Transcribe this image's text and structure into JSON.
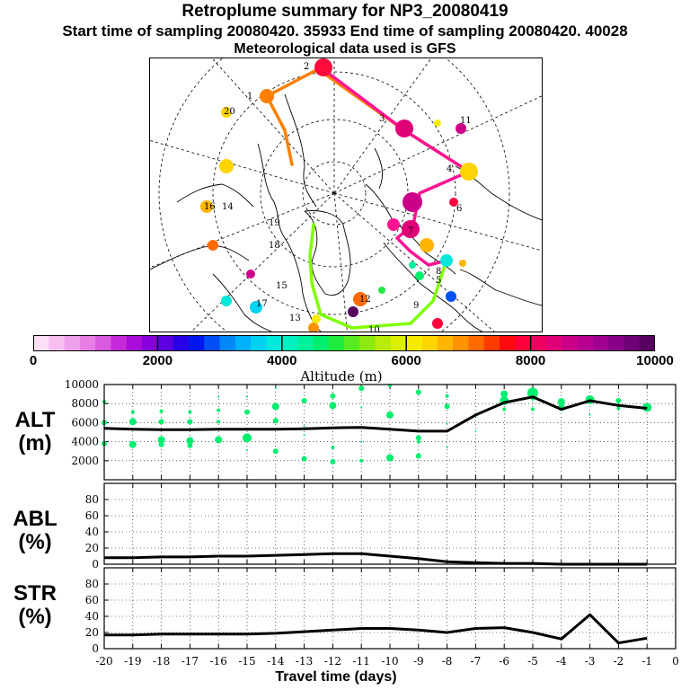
{
  "title": "Retroplume summary for NP3_20080419",
  "subtitle": "Start time of sampling 20080420. 35933     End time of sampling 20080420. 40028",
  "met_line": "Meteorological data used is GFS",
  "colorbar": {
    "labels": [
      "0",
      "2000",
      "4000",
      "6000",
      "8000",
      "10000"
    ],
    "unit_label": "Altitude (m)",
    "colors": [
      "#fde0f6",
      "#f7bff0",
      "#efa0ea",
      "#e67ee4",
      "#da5ade",
      "#c52ad8",
      "#a90bd9",
      "#8500dc",
      "#5c00e0",
      "#2a00e6",
      "#0018ee",
      "#0050f5",
      "#0088f8",
      "#00b0f8",
      "#00d2f0",
      "#00e8dc",
      "#00f0c0",
      "#00f09c",
      "#00ee70",
      "#20ec40",
      "#58ea20",
      "#8cea10",
      "#b8ec08",
      "#dcee00",
      "#f4ec00",
      "#ffd400",
      "#ffb400",
      "#ff9200",
      "#ff6a00",
      "#ff3c00",
      "#ff0a10",
      "#ff003c",
      "#f00060",
      "#e00078",
      "#cc0088",
      "#b80090",
      "#a00090",
      "#880088",
      "#700078",
      "#580060"
    ]
  },
  "map": {
    "cluster_labels": [
      "1",
      "2",
      "3",
      "4",
      "5",
      "6",
      "7",
      "8",
      "9",
      "10",
      "11",
      "12",
      "13",
      "14",
      "15",
      "16",
      "17",
      "18",
      "19",
      "20"
    ],
    "track_colors": [
      "#ff8000",
      "#ff1493",
      "#80ff00"
    ]
  },
  "chart_data": {
    "type": "line",
    "x_label": "Travel time (days)",
    "x_ticks": [
      "-20",
      "-19",
      "-18",
      "-17",
      "-16",
      "-15",
      "-14",
      "-13",
      "-12",
      "-11",
      "-10",
      "-9",
      "-8",
      "-7",
      "-6",
      "-5",
      "-4",
      "-3",
      "-2",
      "-1",
      "0"
    ],
    "xlim": [
      -20,
      0
    ],
    "panels": [
      {
        "name": "ALT",
        "label": [
          "ALT",
          "(m)"
        ],
        "ylim": [
          0,
          10000
        ],
        "y_ticks": [
          "10000",
          "8000",
          "6000",
          "4000",
          "2000"
        ],
        "y_tick_values": [
          10000,
          8000,
          6000,
          4000,
          2000
        ],
        "series": {
          "name": "mean altitude",
          "x": [
            -20,
            -19,
            -18,
            -17,
            -16,
            -15,
            -14,
            -13,
            -12,
            -11,
            -10,
            -9,
            -8,
            -7,
            -6,
            -5,
            -4,
            -3,
            -2,
            -1
          ],
          "y": [
            5400,
            5300,
            5250,
            5250,
            5300,
            5300,
            5300,
            5350,
            5450,
            5500,
            5300,
            5100,
            5100,
            6800,
            8100,
            8700,
            7400,
            8300,
            7800,
            7500
          ]
        },
        "scatter": [
          {
            "x": -20,
            "y": 8200,
            "s": 2
          },
          {
            "x": -20,
            "y": 6000,
            "s": 3
          },
          {
            "x": -20,
            "y": 3800,
            "s": 3
          },
          {
            "x": -19,
            "y": 7100,
            "s": 2
          },
          {
            "x": -19,
            "y": 6100,
            "s": 4
          },
          {
            "x": -19,
            "y": 3700,
            "s": 4
          },
          {
            "x": -18,
            "y": 7200,
            "s": 2
          },
          {
            "x": -18,
            "y": 6100,
            "s": 3
          },
          {
            "x": -18,
            "y": 4200,
            "s": 4
          },
          {
            "x": -18,
            "y": 3700,
            "s": 3
          },
          {
            "x": -17,
            "y": 7100,
            "s": 2
          },
          {
            "x": -17,
            "y": 6100,
            "s": 3
          },
          {
            "x": -17,
            "y": 4100,
            "s": 4
          },
          {
            "x": -17,
            "y": 3600,
            "s": 3
          },
          {
            "x": -16,
            "y": 8700,
            "s": 1
          },
          {
            "x": -16,
            "y": 7300,
            "s": 2
          },
          {
            "x": -16,
            "y": 6100,
            "s": 2
          },
          {
            "x": -16,
            "y": 4200,
            "s": 4
          },
          {
            "x": -15,
            "y": 8700,
            "s": 1
          },
          {
            "x": -15,
            "y": 7100,
            "s": 3
          },
          {
            "x": -15,
            "y": 4400,
            "s": 5
          },
          {
            "x": -15,
            "y": 3100,
            "s": 1
          },
          {
            "x": -14,
            "y": 9600,
            "s": 1
          },
          {
            "x": -14,
            "y": 7700,
            "s": 4
          },
          {
            "x": -14,
            "y": 6200,
            "s": 3
          },
          {
            "x": -14,
            "y": 3000,
            "s": 3
          },
          {
            "x": -13,
            "y": 8300,
            "s": 3
          },
          {
            "x": -13,
            "y": 5600,
            "s": 1
          },
          {
            "x": -13,
            "y": 4700,
            "s": 1
          },
          {
            "x": -13,
            "y": 2200,
            "s": 3
          },
          {
            "x": -12,
            "y": 8800,
            "s": 3
          },
          {
            "x": -12,
            "y": 7800,
            "s": 4
          },
          {
            "x": -12,
            "y": 3400,
            "s": 2
          },
          {
            "x": -12,
            "y": 1900,
            "s": 3
          },
          {
            "x": -11,
            "y": 9600,
            "s": 3
          },
          {
            "x": -11,
            "y": 7600,
            "s": 1
          },
          {
            "x": -11,
            "y": 4000,
            "s": 1
          },
          {
            "x": -11,
            "y": 2000,
            "s": 2
          },
          {
            "x": -10,
            "y": 9900,
            "s": 2
          },
          {
            "x": -10,
            "y": 6800,
            "s": 4
          },
          {
            "x": -10,
            "y": 2300,
            "s": 4
          },
          {
            "x": -9,
            "y": 9200,
            "s": 3
          },
          {
            "x": -9,
            "y": 4400,
            "s": 3
          },
          {
            "x": -9,
            "y": 4000,
            "s": 2
          },
          {
            "x": -9,
            "y": 2500,
            "s": 3
          },
          {
            "x": -8,
            "y": 8800,
            "s": 2
          },
          {
            "x": -8,
            "y": 7700,
            "s": 3
          },
          {
            "x": -8,
            "y": 5900,
            "s": 1
          },
          {
            "x": -8,
            "y": 3400,
            "s": 1
          },
          {
            "x": -7,
            "y": 6800,
            "s": 2
          },
          {
            "x": -7,
            "y": 5100,
            "s": 1
          },
          {
            "x": -6,
            "y": 9000,
            "s": 4
          },
          {
            "x": -6,
            "y": 8300,
            "s": 5
          },
          {
            "x": -6,
            "y": 7400,
            "s": 2
          },
          {
            "x": -5,
            "y": 9100,
            "s": 6
          },
          {
            "x": -5,
            "y": 8500,
            "s": 2
          },
          {
            "x": -5,
            "y": 7400,
            "s": 2
          },
          {
            "x": -4,
            "y": 8200,
            "s": 4
          },
          {
            "x": -4,
            "y": 7600,
            "s": 4
          },
          {
            "x": -3,
            "y": 8400,
            "s": 5
          },
          {
            "x": -3,
            "y": 6800,
            "s": 1
          },
          {
            "x": -2,
            "y": 8300,
            "s": 3
          },
          {
            "x": -2,
            "y": 7500,
            "s": 2
          },
          {
            "x": -1,
            "y": 7600,
            "s": 5
          }
        ]
      },
      {
        "name": "ABL",
        "label": [
          "ABL",
          "(%)"
        ],
        "ylim": [
          0,
          100
        ],
        "y_ticks": [
          "80",
          "60",
          "40",
          "20",
          "0"
        ],
        "y_tick_values": [
          80,
          60,
          40,
          20,
          0
        ],
        "series": {
          "name": "percent in ABL",
          "x": [
            -20,
            -19,
            -18,
            -17,
            -16,
            -15,
            -14,
            -13,
            -12,
            -11,
            -10,
            -9,
            -8,
            -7,
            -6,
            -5,
            -4,
            -3,
            -2,
            -1
          ],
          "y": [
            8,
            8,
            9,
            9,
            10,
            10,
            11,
            12,
            13,
            13,
            10,
            7,
            3,
            2,
            1,
            1,
            0,
            0,
            0,
            0
          ]
        }
      },
      {
        "name": "STR",
        "label": [
          "STR",
          "(%)"
        ],
        "ylim": [
          0,
          100
        ],
        "y_ticks": [
          "80",
          "60",
          "40",
          "20",
          "0"
        ],
        "y_tick_values": [
          80,
          60,
          40,
          20,
          0
        ],
        "series": {
          "name": "percent in stratosphere",
          "x": [
            -20,
            -19,
            -18,
            -17,
            -16,
            -15,
            -14,
            -13,
            -12,
            -11,
            -10,
            -9,
            -8,
            -7,
            -6,
            -5,
            -4,
            -3,
            -2,
            -1
          ],
          "y": [
            17,
            17,
            18,
            18,
            18,
            18,
            19,
            21,
            23,
            25,
            25,
            23,
            20,
            25,
            26,
            20,
            12,
            42,
            7,
            13
          ]
        }
      }
    ]
  }
}
